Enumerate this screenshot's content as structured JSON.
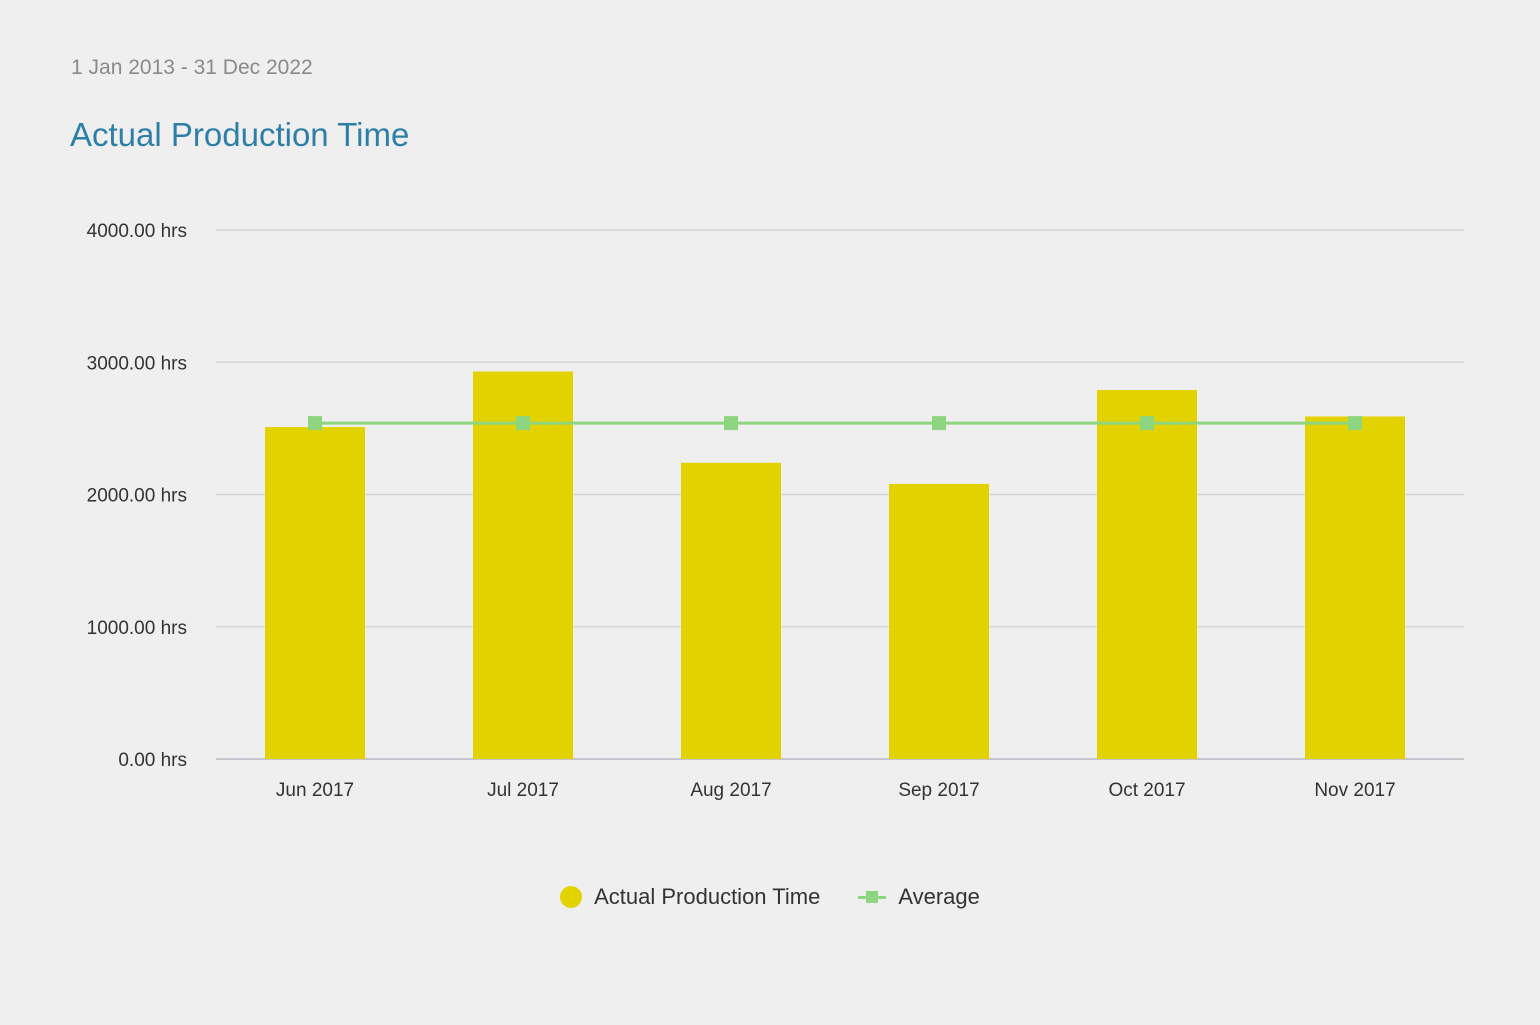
{
  "header": {
    "date_range": "1 Jan 2013 - 31 Dec 2022",
    "title": "Actual Production Time"
  },
  "colors": {
    "bar": "#e2d300",
    "average_line": "#8dd67f",
    "gridline": "#d6d6d6",
    "title": "#2e7fa8"
  },
  "legend": {
    "items": [
      {
        "label": "Actual Production Time",
        "marker": "circle"
      },
      {
        "label": "Average",
        "marker": "line-square"
      }
    ]
  },
  "chart_data": {
    "type": "bar",
    "title": "Actual Production Time",
    "categories": [
      "Jun 2017",
      "Jul 2017",
      "Aug 2017",
      "Sep 2017",
      "Oct 2017",
      "Nov 2017"
    ],
    "series": [
      {
        "name": "Actual Production Time",
        "type": "bar",
        "values": [
          2510,
          2930,
          2240,
          2080,
          2790,
          2590
        ]
      },
      {
        "name": "Average",
        "type": "line",
        "values": [
          2540,
          2540,
          2540,
          2540,
          2540,
          2540
        ]
      }
    ],
    "ylim": [
      0,
      4000
    ],
    "yticks": [
      0,
      1000,
      2000,
      3000,
      4000
    ],
    "ytick_labels": [
      "0.00 hrs",
      "1000.00 hrs",
      "2000.00 hrs",
      "3000.00 hrs",
      "4000.00 hrs"
    ],
    "grid": true,
    "legend_position": "bottom-center"
  }
}
